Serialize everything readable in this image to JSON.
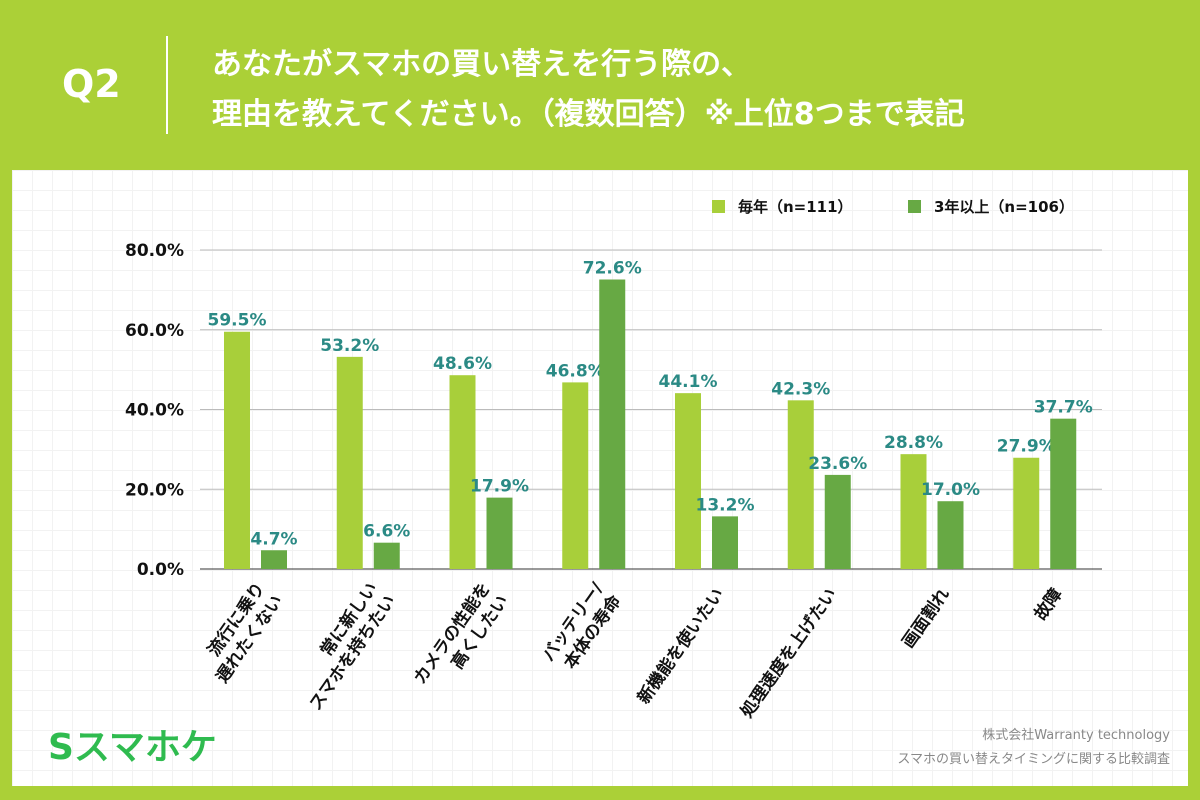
{
  "header": {
    "q": "Q2",
    "title": "あなたがスマホの買い替えを行う際の、\n理由を教えてください。（複数回答）※上位8つまで表記"
  },
  "logo": "Sスマホケ",
  "source": {
    "line1": "株式会社Warranty technology",
    "line2": "スマホの買い替えタイミングに関する比較調査"
  },
  "colors": {
    "background": "#abd037",
    "series1": "#a8cf3a",
    "series2": "#67a944",
    "label": "#2b8a85"
  },
  "chart_data": {
    "type": "bar",
    "categories": [
      "流行に乗り\n遅れたくない",
      "常に新しい\nスマホを持ちたい",
      "カメラの性能を\n高くしたい",
      "バッテリー/\n本体の寿命",
      "新機能を使いたい",
      "処理速度を上げたい",
      "画面割れ",
      "故障"
    ],
    "series": [
      {
        "name": "毎年（n=111）",
        "values": [
          59.5,
          53.2,
          48.6,
          46.8,
          44.1,
          42.3,
          28.8,
          27.9
        ]
      },
      {
        "name": "3年以上（n=106）",
        "values": [
          4.7,
          6.6,
          17.9,
          72.6,
          13.2,
          23.6,
          17.0,
          37.7
        ]
      }
    ],
    "ylim": [
      0,
      80
    ],
    "yticks": [
      "0.0%",
      "20.0%",
      "40.0%",
      "60.0%",
      "80.0%"
    ],
    "grid": true,
    "legend": "top-right"
  }
}
